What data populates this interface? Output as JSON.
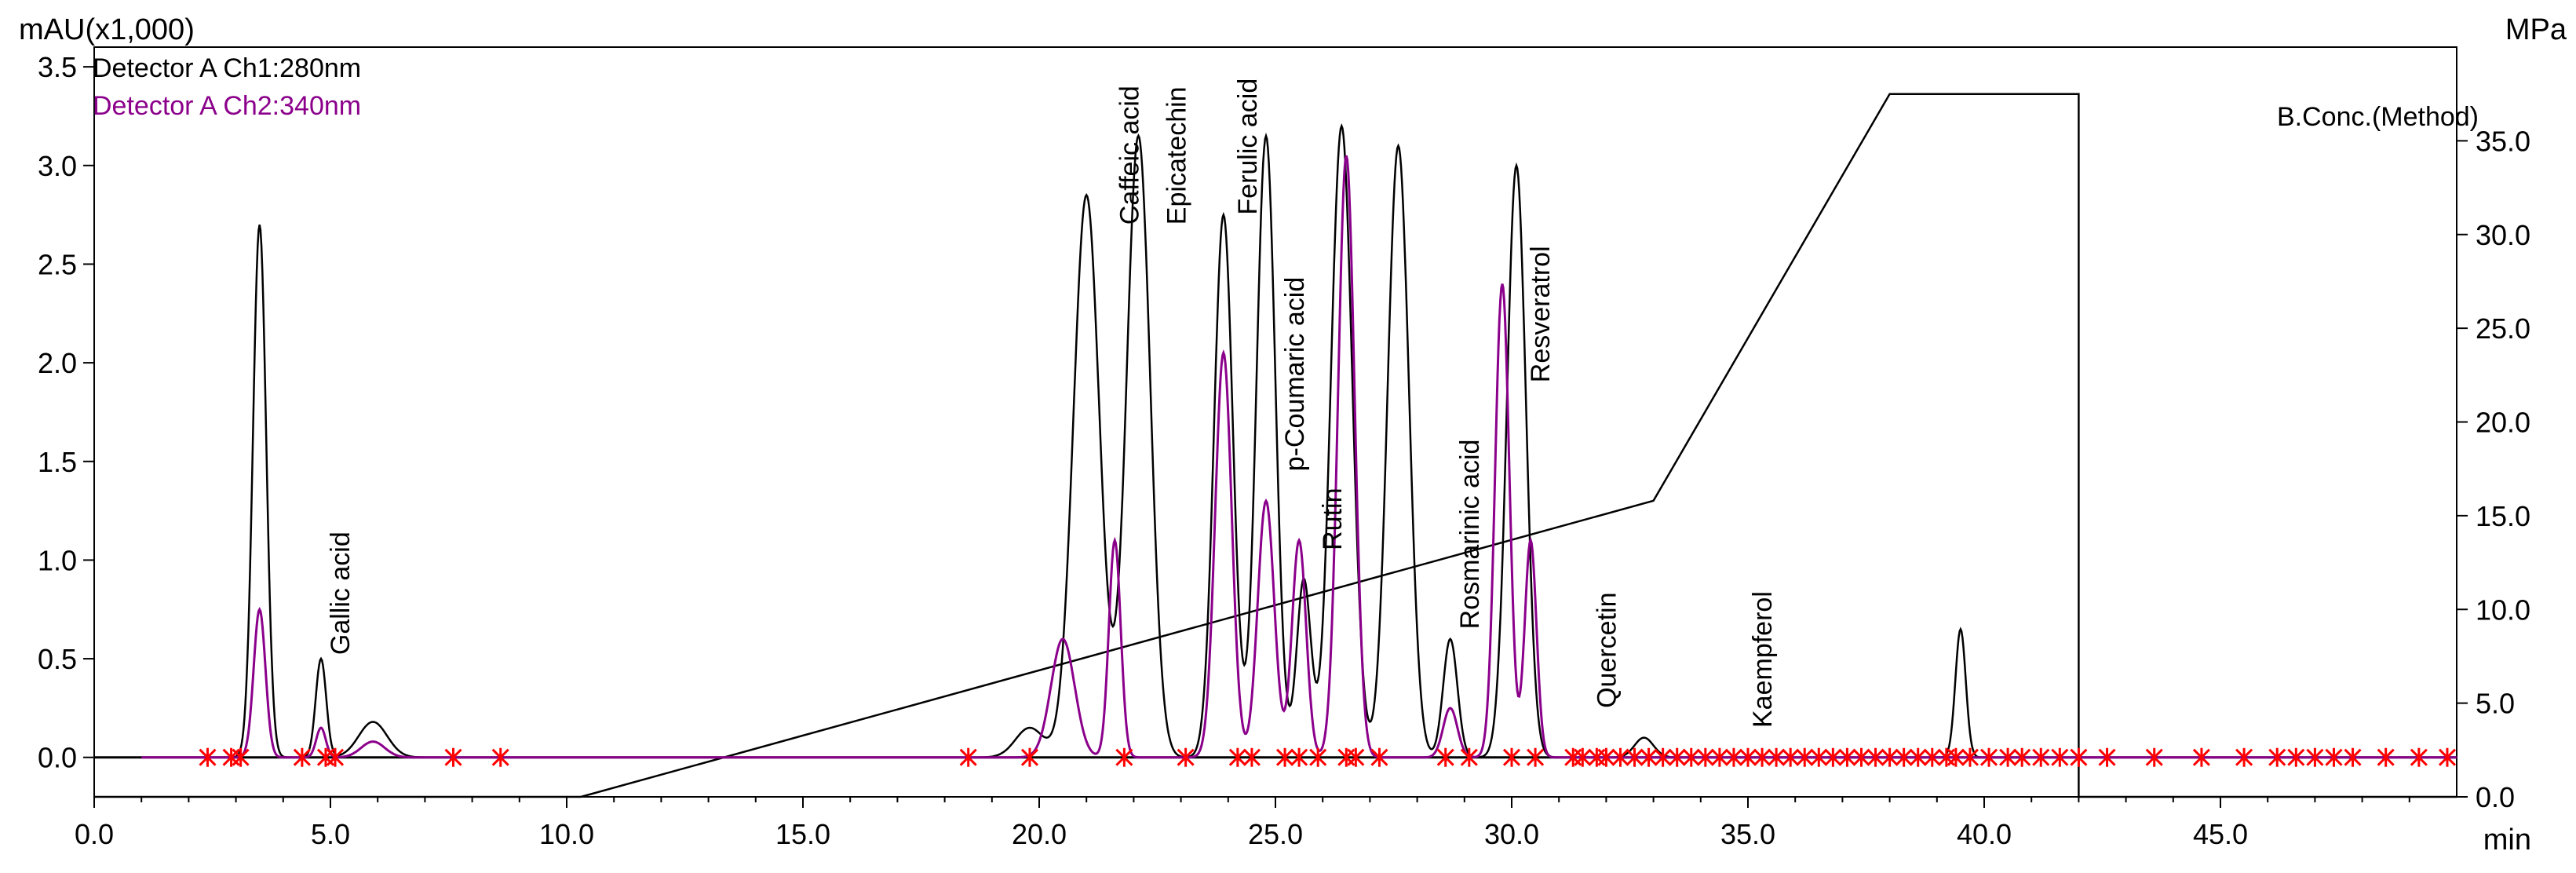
{
  "chart_data": {
    "type": "line",
    "y_left_label": "mAU(x1,000)",
    "y_right_label": "MPa",
    "x_unit_label": "min",
    "xlim": [
      0,
      50
    ],
    "ylim_left": [
      -0.2,
      3.6
    ],
    "ylim_right": [
      0,
      40
    ],
    "x_ticks": [
      "0.0",
      "5.0",
      "10.0",
      "15.0",
      "20.0",
      "25.0",
      "30.0",
      "35.0",
      "40.0",
      "45.0"
    ],
    "y_left_ticks": [
      "0.0",
      "0.5",
      "1.0",
      "1.5",
      "2.0",
      "2.5",
      "3.0",
      "3.5"
    ],
    "y_right_ticks": [
      "0.0",
      "5.0",
      "10.0",
      "15.0",
      "20.0",
      "25.0",
      "30.0",
      "35.0"
    ],
    "grid": false,
    "legend_position": "top-left",
    "series": [
      {
        "name": "Detector A Ch1:280nm",
        "color": "#000000",
        "peaks": [
          [
            3.5,
            2.7,
            0.28
          ],
          [
            4.8,
            0.5,
            0.22
          ],
          [
            5.9,
            0.18,
            0.6
          ],
          [
            19.8,
            0.15,
            0.6
          ],
          [
            21.0,
            2.85,
            0.55
          ],
          [
            22.1,
            3.15,
            0.5
          ],
          [
            23.9,
            2.75,
            0.4
          ],
          [
            24.8,
            3.15,
            0.4
          ],
          [
            25.6,
            0.9,
            0.3
          ],
          [
            26.4,
            3.2,
            0.45
          ],
          [
            27.6,
            3.1,
            0.45
          ],
          [
            28.7,
            0.6,
            0.3
          ],
          [
            30.1,
            3.0,
            0.4
          ],
          [
            32.8,
            0.1,
            0.4
          ],
          [
            39.5,
            0.65,
            0.22
          ]
        ]
      },
      {
        "name": "Detector A Ch2:340nm",
        "color": "#8b008b",
        "peaks": [
          [
            3.5,
            0.75,
            0.25
          ],
          [
            4.8,
            0.15,
            0.2
          ],
          [
            5.9,
            0.08,
            0.5
          ],
          [
            20.5,
            0.6,
            0.5
          ],
          [
            21.6,
            1.1,
            0.25
          ],
          [
            23.9,
            2.05,
            0.35
          ],
          [
            24.8,
            1.3,
            0.35
          ],
          [
            25.5,
            1.1,
            0.3
          ],
          [
            26.5,
            3.05,
            0.35
          ],
          [
            28.7,
            0.25,
            0.3
          ],
          [
            29.8,
            2.4,
            0.3
          ],
          [
            30.4,
            1.1,
            0.25
          ]
        ]
      },
      {
        "name": "B.Conc.(Method)",
        "axis": "right",
        "color": "#000000",
        "x": [
          0,
          10.3,
          33.0,
          38.0,
          42.0,
          42.0,
          50.0
        ],
        "y": [
          0,
          0,
          15.8,
          37.5,
          37.5,
          0,
          0
        ]
      }
    ],
    "annotations": [
      {
        "label": "Gallic acid",
        "x": 5.2,
        "y": 0.52
      },
      {
        "label": "Caffeic acid",
        "x": 21.9,
        "y": 2.7
      },
      {
        "label": "Epicatechin",
        "x": 22.9,
        "y": 2.7
      },
      {
        "label": "Ferulic acid",
        "x": 24.4,
        "y": 2.75
      },
      {
        "label": "p-Coumaric acid",
        "x": 25.4,
        "y": 1.45
      },
      {
        "label": "Rutin",
        "x": 26.2,
        "y": 1.05
      },
      {
        "label": "Rosmarinic acid",
        "x": 29.1,
        "y": 0.65
      },
      {
        "label": "Resveratrol",
        "x": 30.6,
        "y": 1.9
      },
      {
        "label": "Quercetin",
        "x": 32.0,
        "y": 0.25
      },
      {
        "label": "Kaempferol",
        "x": 35.3,
        "y": 0.15
      }
    ],
    "baseline_markers": [
      2.4,
      2.9,
      3.1,
      4.4,
      4.9,
      5.1,
      7.6,
      8.6,
      18.5,
      19.8,
      21.8,
      23.1,
      24.2,
      24.5,
      25.2,
      25.5,
      25.9,
      26.5,
      26.7,
      27.2,
      28.6,
      29.1,
      30.0,
      30.5,
      31.3,
      31.5,
      31.8,
      32.0,
      32.3,
      32.6,
      32.9,
      33.2,
      33.5,
      33.8,
      34.1,
      34.4,
      34.7,
      35.0,
      35.3,
      35.6,
      35.9,
      36.2,
      36.5,
      36.8,
      37.1,
      37.4,
      37.7,
      38.0,
      38.3,
      38.6,
      38.9,
      39.2,
      39.4,
      39.7,
      40.1,
      40.5,
      40.8,
      41.2,
      41.6,
      42.0,
      42.6,
      43.6,
      44.6,
      45.5,
      46.2,
      46.6,
      47.0,
      47.4,
      47.8,
      48.5,
      49.2,
      49.8
    ]
  }
}
